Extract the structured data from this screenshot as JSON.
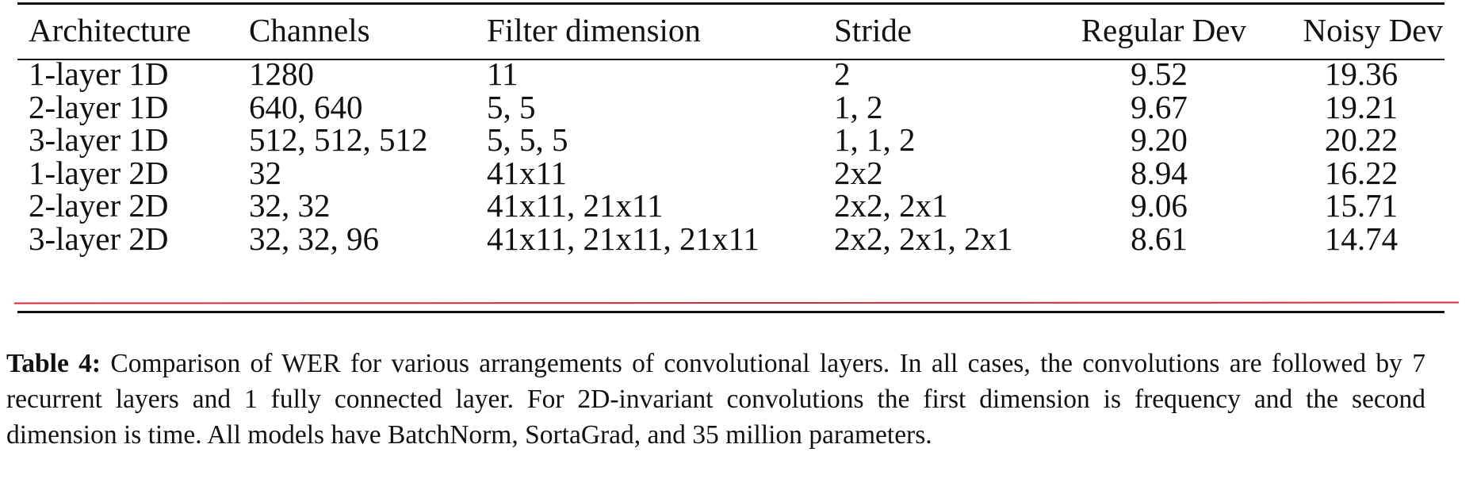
{
  "table": {
    "columns": [
      "Architecture",
      "Channels",
      "Filter dimension",
      "Stride",
      "Regular Dev",
      "Noisy Dev"
    ],
    "rows": [
      [
        "1-layer 1D",
        "1280",
        "11",
        "2",
        "9.52",
        "19.36"
      ],
      [
        "2-layer 1D",
        "640, 640",
        "5, 5",
        "1, 2",
        "9.67",
        "19.21"
      ],
      [
        "3-layer 1D",
        "512, 512, 512",
        "5, 5, 5",
        "1, 1, 2",
        "9.20",
        "20.22"
      ],
      [
        "1-layer 2D",
        "32",
        "41x11",
        "2x2",
        "8.94",
        "16.22"
      ],
      [
        "2-layer 2D",
        "32, 32",
        "41x11, 21x11",
        "2x2, 2x1",
        "9.06",
        "15.71"
      ],
      [
        "3-layer 2D",
        "32, 32, 96",
        "41x11, 21x11, 21x11",
        "2x2, 2x1, 2x1",
        "8.61",
        "14.74"
      ]
    ]
  },
  "caption": {
    "label": "Table 4:",
    "text": "Comparison of WER for various arrangements of convolutional layers. In all cases, the convolutions are followed by 7 recurrent layers and 1 fully connected layer. For 2D-invariant convolutions the first dimension is frequency and the second dimension is time. All models have BatchNorm, SortaGrad, and 35 million parameters."
  },
  "colors": {
    "annotation_underline": "#d42a3a",
    "text": "#111111"
  }
}
